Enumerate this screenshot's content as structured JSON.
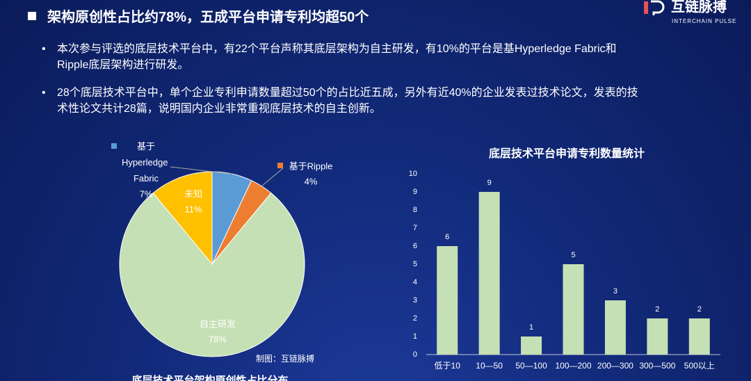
{
  "header": {
    "title": "架构原创性占比约78%，五成平台申请专利均超50个"
  },
  "bullets": [
    "本次参与评选的底层技术平台中，有22个平台声称其底层架构为自主研发，有10%的平台是基Hyperledge Fabric和Ripple底层架构进行研发。",
    "28个底层技术平台中，单个企业专利申请数量超过50个的占比近五成，另外有近40%的企业发表过技术论文，发表的技术性论文共计28篇，说明国内企业非常重视底层技术的自主创新。"
  ],
  "logo": {
    "name": "互链脉搏",
    "subtitle": "INTERCHAIN PULSE"
  },
  "chart_data": [
    {
      "type": "pie",
      "title": "底层技术平台架构原创性占比分布",
      "source": "制图：互链脉搏",
      "categories": [
        "基于Hyperledge Fabric",
        "基于Ripple",
        "自主研发",
        "未知"
      ],
      "values": [
        7,
        4,
        78,
        11
      ],
      "value_labels": [
        "7%",
        "4%",
        "78%",
        "11%"
      ],
      "colors": [
        "#5b9bd5",
        "#ed7d31",
        "#c5e0b4",
        "#ffc000"
      ]
    },
    {
      "type": "bar",
      "title": "底层技术平台申请专利数量统计",
      "categories": [
        "低于10",
        "10—50",
        "50—100",
        "100—200",
        "200—300",
        "300—500",
        "500以上"
      ],
      "values": [
        6,
        9,
        1,
        5,
        3,
        2,
        2
      ],
      "color": "#c5e0b4",
      "ylim": [
        0,
        10
      ],
      "yticks": [
        0,
        1,
        2,
        3,
        4,
        5,
        6,
        7,
        8,
        9,
        10
      ],
      "grid": false
    }
  ]
}
